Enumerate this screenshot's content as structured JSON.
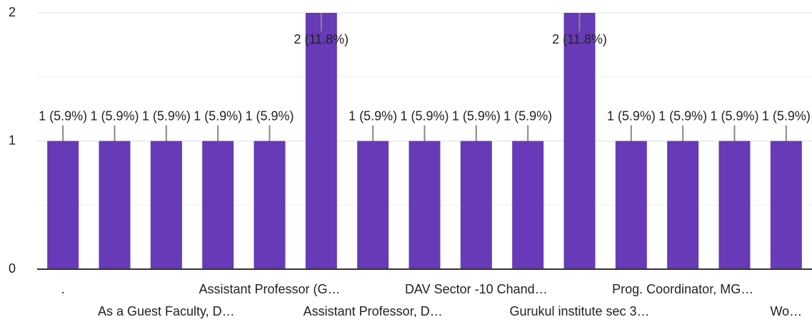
{
  "chart_data": {
    "type": "bar",
    "categories": [
      ".",
      null,
      "As a Guest Faculty, D…",
      null,
      "Assistant Professor (G…",
      null,
      "Assistant Professor, D…",
      null,
      "DAV Sector -10 Chand…",
      null,
      "Gurukul institute sec 3…",
      null,
      "Prog. Coordinator, MG…",
      null,
      "Wo…"
    ],
    "values": [
      1,
      1,
      1,
      1,
      1,
      2,
      1,
      1,
      1,
      1,
      2,
      1,
      1,
      1,
      1
    ],
    "value_labels": [
      "1 (5.9%)",
      "1 (5.9%)",
      "1 (5.9%)",
      "1 (5.9%)",
      "1 (5.9%)",
      "2 (11.8%)",
      "1 (5.9%)",
      "1 (5.9%)",
      "1 (5.9%)",
      "1 (5.9%)",
      "2 (11.8%)",
      "1 (5.9%)",
      "1 (5.9%)",
      "1 (5.9%)",
      "1 (5.9%)"
    ],
    "color": "#673ab7",
    "ylim": [
      0,
      2
    ],
    "yticks": [
      0,
      1,
      2
    ],
    "minor_yticks": [
      0.5,
      1.5
    ],
    "grid": true
  }
}
